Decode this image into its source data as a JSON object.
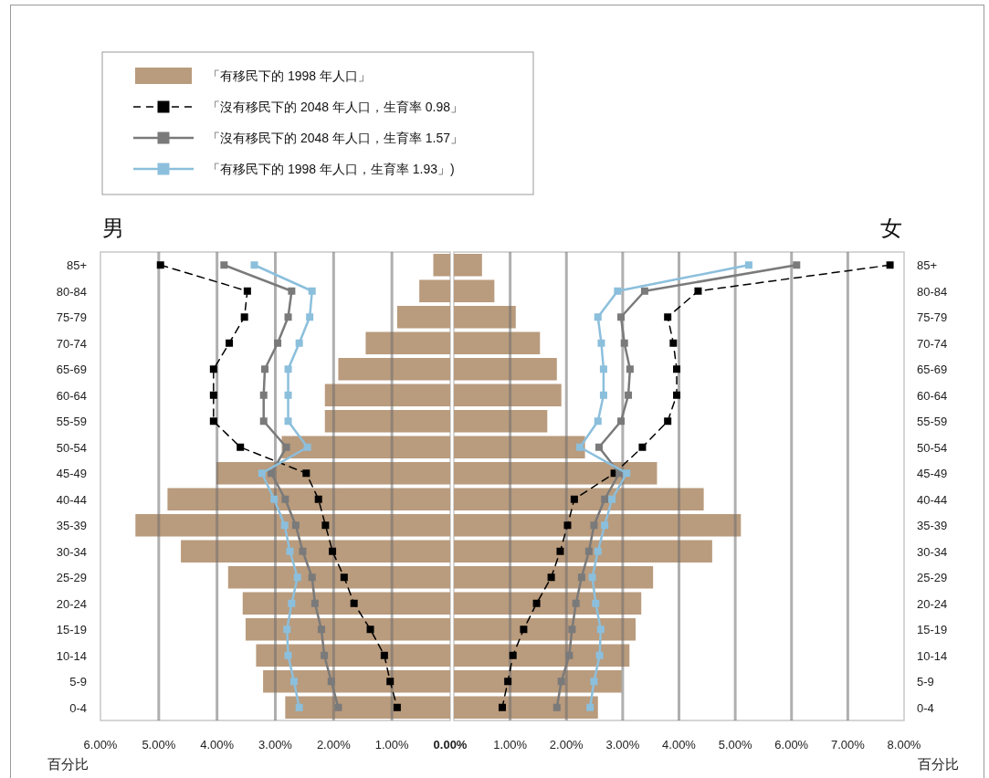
{
  "chart_data": [
    {
      "type": "bar",
      "orientation": "horizontal",
      "title": "男",
      "xlabel": "百分比",
      "legend": "top",
      "grid": "x",
      "categories": [
        "85+",
        "80-84",
        "75-79",
        "70-74",
        "65-69",
        "60-64",
        "55-59",
        "50-54",
        "45-49",
        "40-44",
        "35-39",
        "30-34",
        "25-29",
        "20-24",
        "15-19",
        "10-14",
        "5-9",
        "0-4"
      ],
      "xlim": [
        6,
        0
      ],
      "xticks": [
        {
          "value": 6,
          "label": "6.00%"
        },
        {
          "value": 5,
          "label": "5.00%"
        },
        {
          "value": 4,
          "label": "4.00%"
        },
        {
          "value": 3,
          "label": "3.00%"
        },
        {
          "value": 2,
          "label": "2.00%"
        },
        {
          "value": 1,
          "label": "1.00%"
        },
        {
          "value": 0,
          "label": "0.00%"
        }
      ],
      "series": [
        {
          "name": "「有移民下的 1998 年人口」",
          "type": "bar",
          "color": "#b99b7d",
          "values": [
            0.29,
            0.53,
            0.91,
            1.45,
            1.92,
            2.15,
            2.15,
            2.89,
            4.01,
            4.85,
            5.4,
            4.62,
            3.81,
            3.56,
            3.51,
            3.33,
            3.21,
            2.83
          ]
        },
        {
          "name": "「沒有移民下的 2048 年人口，生育率 0.98」",
          "type": "line",
          "color": "#000000",
          "line_style": "dashed",
          "marker": "square",
          "values": [
            4.97,
            3.48,
            3.53,
            3.79,
            4.06,
            4.06,
            4.06,
            3.6,
            2.47,
            2.26,
            2.14,
            2.02,
            1.82,
            1.65,
            1.37,
            1.13,
            1.03,
            0.91
          ]
        },
        {
          "name": "「沒有移民下的 2048 年人口，生育率 1.57」",
          "type": "line",
          "color": "#7a7a7a",
          "line_style": "solid",
          "marker": "square",
          "values": [
            3.88,
            2.72,
            2.78,
            2.96,
            3.18,
            3.2,
            3.2,
            2.81,
            3.07,
            2.83,
            2.65,
            2.53,
            2.37,
            2.32,
            2.21,
            2.16,
            2.04,
            1.92
          ]
        },
        {
          "name": "「有移民下的 1998 年人口，生育率 1.93」)",
          "type": "line",
          "color": "#8bbfdc",
          "line_style": "solid",
          "marker": "square",
          "values": [
            3.36,
            2.37,
            2.41,
            2.59,
            2.78,
            2.78,
            2.78,
            2.45,
            3.23,
            3.02,
            2.84,
            2.75,
            2.62,
            2.72,
            2.8,
            2.78,
            2.68,
            2.59
          ]
        }
      ]
    },
    {
      "type": "bar",
      "orientation": "horizontal",
      "title": "女",
      "xlabel": "百分比",
      "grid": "x",
      "categories": [
        "85+",
        "80-84",
        "75-79",
        "70-74",
        "65-69",
        "60-64",
        "55-59",
        "50-54",
        "45-49",
        "40-44",
        "35-39",
        "30-34",
        "25-29",
        "20-24",
        "15-19",
        "10-14",
        "5-9",
        "0-4"
      ],
      "xlim": [
        0,
        8
      ],
      "xticks": [
        {
          "value": 0,
          "label": null
        },
        {
          "value": 1,
          "label": "1.00%"
        },
        {
          "value": 2,
          "label": "2.00%"
        },
        {
          "value": 3,
          "label": "3.00%"
        },
        {
          "value": 4,
          "label": "4.00%"
        },
        {
          "value": 5,
          "label": "5.00%"
        },
        {
          "value": 6,
          "label": "6.00%"
        },
        {
          "value": 7,
          "label": "7.00%"
        },
        {
          "value": 8,
          "label": "8.00%"
        }
      ],
      "series": [
        {
          "type": "bar",
          "color": "#b99b7d",
          "values": [
            0.5,
            0.72,
            1.1,
            1.53,
            1.83,
            1.91,
            1.66,
            2.33,
            3.61,
            4.44,
            5.1,
            4.59,
            3.54,
            3.33,
            3.23,
            3.12,
            2.98,
            2.56
          ]
        },
        {
          "type": "line",
          "color": "#000000",
          "line_style": "dashed",
          "marker": "square",
          "values": [
            7.75,
            4.34,
            3.8,
            3.9,
            3.96,
            3.96,
            3.8,
            3.35,
            2.85,
            2.14,
            2.02,
            1.89,
            1.73,
            1.47,
            1.24,
            1.05,
            0.96,
            0.86
          ]
        },
        {
          "type": "line",
          "color": "#7a7a7a",
          "line_style": "solid",
          "marker": "square",
          "values": [
            6.09,
            3.39,
            2.97,
            3.03,
            3.13,
            3.1,
            2.97,
            2.58,
            2.94,
            2.68,
            2.49,
            2.4,
            2.27,
            2.17,
            2.1,
            2.05,
            1.91,
            1.83
          ]
        },
        {
          "type": "line",
          "color": "#8bbfdc",
          "line_style": "solid",
          "marker": "square",
          "values": [
            5.24,
            2.91,
            2.56,
            2.62,
            2.66,
            2.66,
            2.56,
            2.24,
            3.07,
            2.81,
            2.68,
            2.56,
            2.46,
            2.52,
            2.61,
            2.59,
            2.49,
            2.42
          ]
        }
      ]
    }
  ]
}
